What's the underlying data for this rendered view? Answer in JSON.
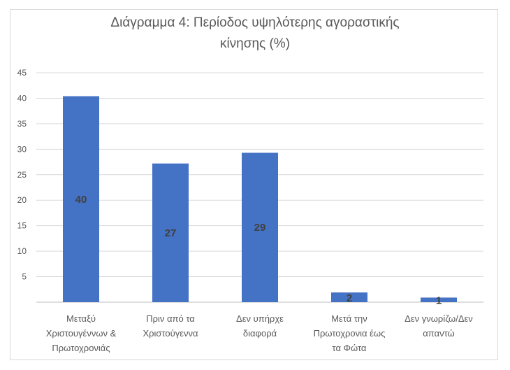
{
  "chart_data": {
    "type": "bar",
    "title": "Διάγραμμα 4: Περίοδος υψηλότερης αγοραστικής κίνησης (%)",
    "title_lines": [
      "Διάγραμμα 4: Περίοδος υψηλότερης αγοραστικής",
      "κίνησης (%)"
    ],
    "categories": [
      [
        "Μεταξύ",
        "Χριστουγέννων  &",
        "Πρωτοχρονιάς"
      ],
      [
        "Πριν από τα",
        "Χριστούγεννα"
      ],
      [
        "Δεν υπήρχε",
        "διαφορά"
      ],
      [
        "Μετά την",
        "Πρωτοχρονια  έως",
        "τα Φώτα"
      ],
      [
        "Δεν γνωρίζω/Δεν",
        "απαντώ"
      ]
    ],
    "values": [
      40.4,
      27.2,
      29.3,
      1.9,
      0.9
    ],
    "data_labels": [
      "40",
      "27",
      "29",
      "2",
      "1"
    ],
    "yticks": [
      "5",
      "10",
      "15",
      "20",
      "25",
      "30",
      "35",
      "40",
      "45"
    ],
    "ylim": [
      0,
      45
    ],
    "grid": true,
    "legend": "none",
    "bar_color": "#4472c4",
    "xlabel": "",
    "ylabel": ""
  }
}
